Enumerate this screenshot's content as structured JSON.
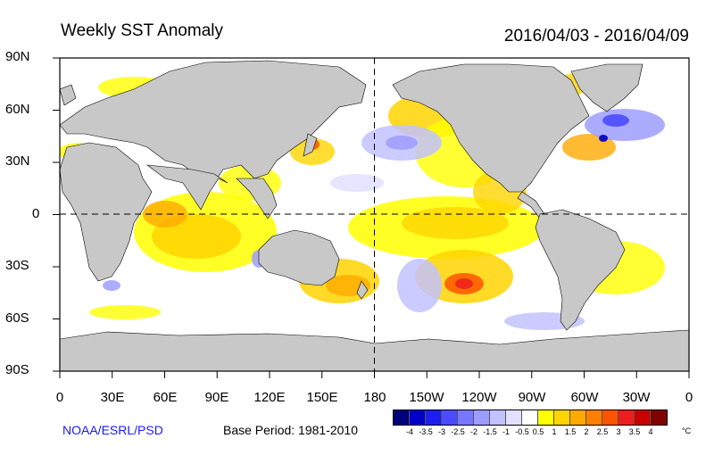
{
  "header": {
    "title": "Weekly SST Anomaly",
    "date_range": "2016/04/03 - 2016/04/09"
  },
  "axes": {
    "lat_labels": [
      "90N",
      "60N",
      "30N",
      "0",
      "30S",
      "60S",
      "90S"
    ],
    "lon_labels": [
      "0",
      "30E",
      "60E",
      "90E",
      "120E",
      "150E",
      "180",
      "150W",
      "120W",
      "90W",
      "60W",
      "30W",
      "0"
    ]
  },
  "footer": {
    "credit": "NOAA/ESRL/PSD",
    "base_period": "Base Period: 1981-2010"
  },
  "colorbar": {
    "labels": [
      "-4",
      "-3.5",
      "-3",
      "-2.5",
      "-2",
      "-1.5",
      "-1",
      "-0.5",
      "0.5",
      "1",
      "1.5",
      "2",
      "2.5",
      "3",
      "3.5",
      "4"
    ],
    "colors": [
      "#00007a",
      "#0000c8",
      "#1e1ef0",
      "#4b4bff",
      "#7777ff",
      "#9d9dff",
      "#c2c2ff",
      "#e1e1ff",
      "#ffffff",
      "#ffff00",
      "#ffd400",
      "#ffaa00",
      "#ff8000",
      "#ff5500",
      "#ee1e1e",
      "#c80000",
      "#800000"
    ],
    "unit": "°C"
  },
  "colors": {
    "land": "#c8c8c8",
    "ocean": "#ffffff"
  }
}
